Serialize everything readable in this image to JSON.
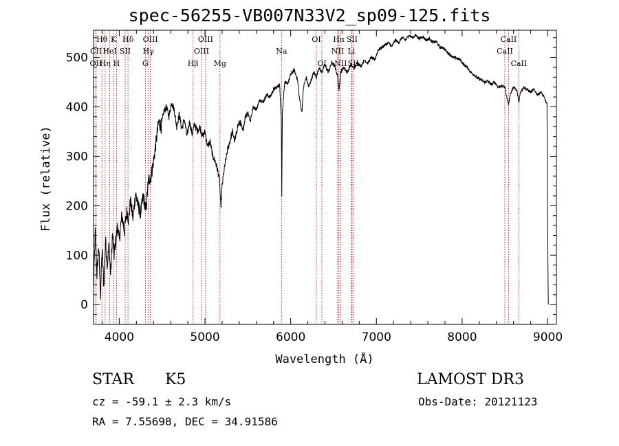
{
  "chart_data": {
    "type": "line",
    "title": "spec-56255-VB007N33V2_sp09-125.fits",
    "xlabel": "Wavelength (Å)",
    "ylabel": "Flux (relative)",
    "xlim": [
      3700,
      9100
    ],
    "ylim": [
      -40,
      555
    ],
    "x_ticks": [
      4000,
      5000,
      6000,
      7000,
      8000,
      9000
    ],
    "y_ticks": [
      0,
      100,
      200,
      300,
      400,
      500
    ],
    "x_tick_labels": [
      "4000",
      "5000",
      "6000",
      "7000",
      "8000",
      "9000"
    ],
    "y_tick_labels": [
      "0",
      "100",
      "200",
      "300",
      "400",
      "500"
    ],
    "grid": false,
    "series": [
      {
        "name": "spectrum",
        "anchors": [
          [
            3700,
            30
          ],
          [
            3720,
            150
          ],
          [
            3740,
            60
          ],
          [
            3760,
            120
          ],
          [
            3780,
            20
          ],
          [
            3800,
            110
          ],
          [
            3820,
            40
          ],
          [
            3840,
            130
          ],
          [
            3860,
            80
          ],
          [
            3880,
            120
          ],
          [
            3900,
            60
          ],
          [
            3920,
            140
          ],
          [
            3940,
            100
          ],
          [
            3960,
            130
          ],
          [
            3980,
            160
          ],
          [
            4000,
            130
          ],
          [
            4030,
            180
          ],
          [
            4060,
            150
          ],
          [
            4090,
            190
          ],
          [
            4110,
            170
          ],
          [
            4130,
            210
          ],
          [
            4160,
            175
          ],
          [
            4190,
            225
          ],
          [
            4220,
            200
          ],
          [
            4250,
            185
          ],
          [
            4280,
            220
          ],
          [
            4310,
            190
          ],
          [
            4340,
            250
          ],
          [
            4370,
            260
          ],
          [
            4400,
            290
          ],
          [
            4430,
            330
          ],
          [
            4460,
            370
          ],
          [
            4490,
            360
          ],
          [
            4520,
            390
          ],
          [
            4550,
            400
          ],
          [
            4580,
            380
          ],
          [
            4610,
            410
          ],
          [
            4640,
            395
          ],
          [
            4670,
            360
          ],
          [
            4700,
            385
          ],
          [
            4730,
            355
          ],
          [
            4760,
            375
          ],
          [
            4790,
            340
          ],
          [
            4820,
            370
          ],
          [
            4850,
            345
          ],
          [
            4880,
            365
          ],
          [
            4910,
            350
          ],
          [
            4940,
            360
          ],
          [
            4970,
            340
          ],
          [
            5000,
            350
          ],
          [
            5030,
            320
          ],
          [
            5060,
            330
          ],
          [
            5090,
            300
          ],
          [
            5120,
            290
          ],
          [
            5150,
            270
          ],
          [
            5170,
            250
          ],
          [
            5185,
            195
          ],
          [
            5200,
            240
          ],
          [
            5230,
            280
          ],
          [
            5260,
            310
          ],
          [
            5290,
            330
          ],
          [
            5320,
            350
          ],
          [
            5350,
            330
          ],
          [
            5380,
            360
          ],
          [
            5410,
            370
          ],
          [
            5440,
            350
          ],
          [
            5470,
            380
          ],
          [
            5500,
            390
          ],
          [
            5530,
            370
          ],
          [
            5560,
            400
          ],
          [
            5600,
            395
          ],
          [
            5640,
            415
          ],
          [
            5680,
            410
          ],
          [
            5720,
            425
          ],
          [
            5760,
            420
          ],
          [
            5800,
            435
          ],
          [
            5840,
            440
          ],
          [
            5870,
            445
          ],
          [
            5890,
            380
          ],
          [
            5896,
            220
          ],
          [
            5903,
            390
          ],
          [
            5930,
            450
          ],
          [
            5960,
            445
          ],
          [
            6000,
            465
          ],
          [
            6040,
            475
          ],
          [
            6080,
            455
          ],
          [
            6100,
            420
          ],
          [
            6130,
            390
          ],
          [
            6150,
            440
          ],
          [
            6180,
            460
          ],
          [
            6210,
            440
          ],
          [
            6240,
            455
          ],
          [
            6270,
            470
          ],
          [
            6300,
            460
          ],
          [
            6330,
            480
          ],
          [
            6360,
            470
          ],
          [
            6400,
            485
          ],
          [
            6440,
            470
          ],
          [
            6480,
            490
          ],
          [
            6520,
            480
          ],
          [
            6550,
            460
          ],
          [
            6563,
            430
          ],
          [
            6580,
            470
          ],
          [
            6620,
            480
          ],
          [
            6660,
            470
          ],
          [
            6700,
            485
          ],
          [
            6740,
            478
          ],
          [
            6780,
            490
          ],
          [
            6820,
            482
          ],
          [
            6860,
            495
          ],
          [
            6900,
            488
          ],
          [
            6940,
            500
          ],
          [
            6980,
            495
          ],
          [
            7020,
            515
          ],
          [
            7060,
            520
          ],
          [
            7100,
            525
          ],
          [
            7140,
            530
          ],
          [
            7180,
            522
          ],
          [
            7220,
            535
          ],
          [
            7260,
            530
          ],
          [
            7300,
            540
          ],
          [
            7340,
            535
          ],
          [
            7380,
            545
          ],
          [
            7420,
            540
          ],
          [
            7460,
            545
          ],
          [
            7500,
            538
          ],
          [
            7540,
            542
          ],
          [
            7580,
            535
          ],
          [
            7620,
            538
          ],
          [
            7660,
            530
          ],
          [
            7700,
            532
          ],
          [
            7740,
            520
          ],
          [
            7780,
            520
          ],
          [
            7820,
            512
          ],
          [
            7860,
            505
          ],
          [
            7900,
            500
          ],
          [
            7940,
            498
          ],
          [
            7980,
            495
          ],
          [
            8020,
            485
          ],
          [
            8060,
            480
          ],
          [
            8100,
            470
          ],
          [
            8140,
            465
          ],
          [
            8180,
            458
          ],
          [
            8220,
            455
          ],
          [
            8260,
            450
          ],
          [
            8300,
            452
          ],
          [
            8340,
            445
          ],
          [
            8380,
            450
          ],
          [
            8420,
            440
          ],
          [
            8460,
            442
          ],
          [
            8500,
            440
          ],
          [
            8520,
            420
          ],
          [
            8542,
            405
          ],
          [
            8560,
            425
          ],
          [
            8600,
            440
          ],
          [
            8640,
            432
          ],
          [
            8662,
            410
          ],
          [
            8680,
            430
          ],
          [
            8720,
            440
          ],
          [
            8760,
            435
          ],
          [
            8800,
            430
          ],
          [
            8840,
            435
          ],
          [
            8880,
            425
          ],
          [
            8920,
            430
          ],
          [
            8960,
            418
          ],
          [
            8990,
            405
          ],
          [
            9000,
            120
          ],
          [
            9005,
            0
          ]
        ]
      }
    ],
    "line_markers": [
      {
        "label": "Hθ",
        "x": 3798,
        "row": 0
      },
      {
        "label": "CII",
        "x": 3730,
        "row": 1
      },
      {
        "label": "OII",
        "x": 3727,
        "row": 2
      },
      {
        "label": "K",
        "x": 3934,
        "row": 0
      },
      {
        "label": "HeI",
        "x": 3889,
        "row": 1
      },
      {
        "label": "Hη",
        "x": 3835,
        "row": 2
      },
      {
        "label": "Hδ",
        "x": 4102,
        "row": 0
      },
      {
        "label": "SII",
        "x": 4069,
        "row": 1
      },
      {
        "label": "H",
        "x": 3968,
        "row": 2
      },
      {
        "label": "OIII",
        "x": 4363,
        "row": 0
      },
      {
        "label": "Hγ",
        "x": 4340,
        "row": 1
      },
      {
        "label": "G",
        "x": 4305,
        "row": 2
      },
      {
        "label": "Hβ",
        "x": 4861,
        "row": 2
      },
      {
        "label": "OIII",
        "x": 5007,
        "row": 0
      },
      {
        "label": "OIII",
        "x": 4959,
        "row": 1
      },
      {
        "label": "Mg",
        "x": 5175,
        "row": 2
      },
      {
        "label": "Na",
        "x": 5893,
        "row": 1
      },
      {
        "label": "OI",
        "x": 6300,
        "row": 0
      },
      {
        "label": "OI",
        "x": 6364,
        "row": 2
      },
      {
        "label": "Hα",
        "x": 6563,
        "row": 0
      },
      {
        "label": "NII",
        "x": 6548,
        "row": 1
      },
      {
        "label": "NII",
        "x": 6583,
        "row": 2
      },
      {
        "label": "SII",
        "x": 6716,
        "row": 0
      },
      {
        "label": "Li",
        "x": 6708,
        "row": 1
      },
      {
        "label": "SII",
        "x": 6731,
        "row": 2
      },
      {
        "label": "CaII",
        "x": 8542,
        "row": 0
      },
      {
        "label": "CaII",
        "x": 8498,
        "row": 1
      },
      {
        "label": "CaII",
        "x": 8662,
        "row": 2
      }
    ]
  },
  "info": {
    "object_class": "STAR",
    "subclass": "K5",
    "survey": "LAMOST DR3",
    "redshift_text": "cz = -59.1 ± 2.3 km/s",
    "obs_date_text": "Obs-Date: 20121123",
    "coords_text": "RA =   7.55698, DEC =  34.91586"
  }
}
